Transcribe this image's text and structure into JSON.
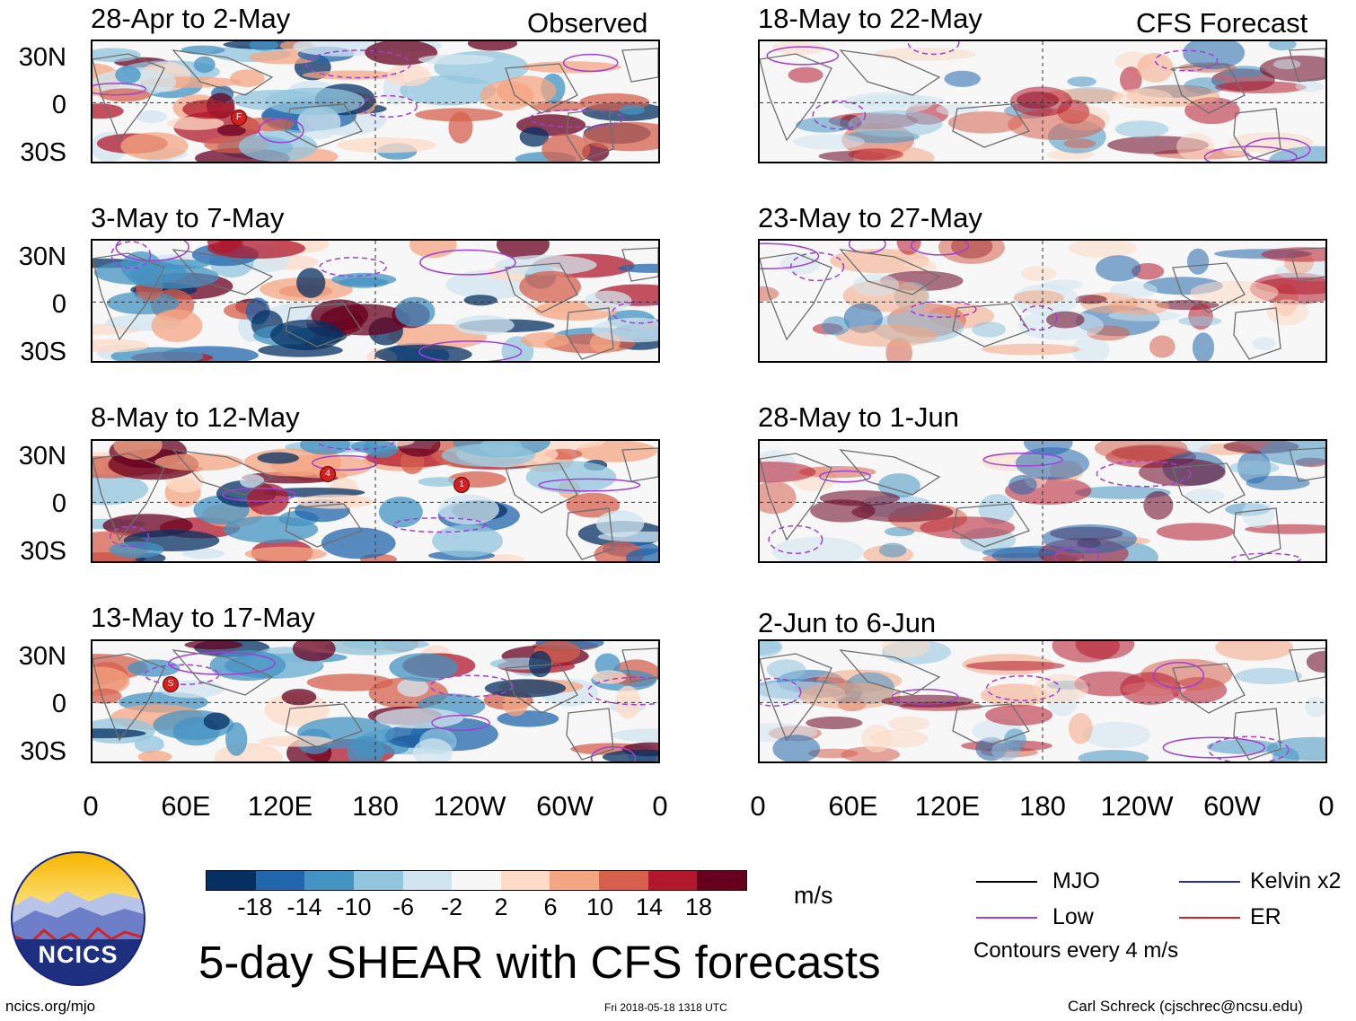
{
  "header": {
    "left_tag": "Observed",
    "right_tag": "CFS Forecast"
  },
  "panels_observed": [
    {
      "title": "28-Apr to 2-May",
      "storms": [
        "F"
      ]
    },
    {
      "title": "3-May to 7-May",
      "storms": []
    },
    {
      "title": "8-May to 12-May",
      "storms": [
        "4",
        "1"
      ]
    },
    {
      "title": "13-May to 17-May",
      "storms": [
        "S"
      ]
    }
  ],
  "panels_forecast": [
    {
      "title": "18-May to 22-May"
    },
    {
      "title": "23-May to 27-May"
    },
    {
      "title": "28-May to 1-Jun"
    },
    {
      "title": "2-Jun to 6-Jun"
    }
  ],
  "y_axis_labels": [
    "30N",
    "0",
    "30S"
  ],
  "x_axis_labels": [
    "0",
    "60E",
    "120E",
    "180",
    "120W",
    "60W",
    "0"
  ],
  "colorbar": {
    "colors": [
      "#053061",
      "#2166ac",
      "#4393c3",
      "#92c5de",
      "#d1e5f0",
      "#f7f7f7",
      "#fddbc7",
      "#f4a582",
      "#d6604d",
      "#b2182b",
      "#67001f"
    ],
    "labels": [
      "-18",
      "-14",
      "-10",
      "-6",
      "-2",
      "2",
      "6",
      "10",
      "14",
      "18"
    ],
    "units": "m/s"
  },
  "legend": {
    "items": [
      {
        "label": "MJO",
        "color": "#000000"
      },
      {
        "label": "Kelvin x2",
        "color": "#2b2bb0"
      },
      {
        "label": "Low",
        "color": "#a23fd6"
      },
      {
        "label": "ER",
        "color": "#d62222"
      }
    ],
    "note": "Contours every 4 m/s"
  },
  "logo_text": "NCICS",
  "main_title": "5-day SHEAR with CFS forecasts",
  "footer": {
    "url": "ncics.org/mjo",
    "timestamp": "Fri 2018-05-18 1318 UTC",
    "author": "Carl Schreck (cjschrec@ncsu.edu)"
  }
}
